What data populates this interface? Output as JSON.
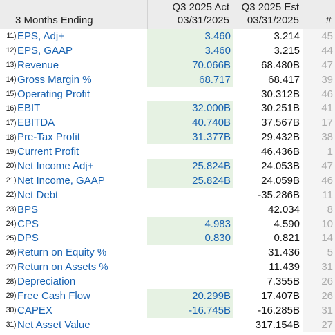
{
  "header": {
    "label": "3 Months Ending",
    "act_title": "Q3 2025 Act",
    "act_date": "03/31/2025",
    "est_title": "Q3 2025 Est",
    "est_date": "03/31/2025",
    "count_title": "#"
  },
  "rows": [
    {
      "num": "11)",
      "label": "EPS, Adj+",
      "act": "3.460",
      "est": "3.214",
      "count": "45"
    },
    {
      "num": "12)",
      "label": "EPS, GAAP",
      "act": "3.460",
      "est": "3.215",
      "count": "44"
    },
    {
      "num": "13)",
      "label": "Revenue",
      "act": "70.066B",
      "est": "68.480B",
      "count": "47"
    },
    {
      "num": "14)",
      "label": "Gross Margin %",
      "act": "68.717",
      "est": "68.417",
      "count": "39"
    },
    {
      "num": "15)",
      "label": "Operating Profit",
      "act": "",
      "est": "30.312B",
      "count": "46"
    },
    {
      "num": "16)",
      "label": "EBIT",
      "act": "32.000B",
      "est": "30.251B",
      "count": "41"
    },
    {
      "num": "17)",
      "label": "EBITDA",
      "act": "40.740B",
      "est": "37.567B",
      "count": "17"
    },
    {
      "num": "18)",
      "label": "Pre-Tax Profit",
      "act": "31.377B",
      "est": "29.432B",
      "count": "38"
    },
    {
      "num": "19)",
      "label": "Current Profit",
      "act": "",
      "est": "46.436B",
      "count": "1"
    },
    {
      "num": "20)",
      "label": "Net Income Adj+",
      "act": "25.824B",
      "est": "24.053B",
      "count": "47"
    },
    {
      "num": "21)",
      "label": "Net Income, GAAP",
      "act": "25.824B",
      "est": "24.059B",
      "count": "46"
    },
    {
      "num": "22)",
      "label": "Net Debt",
      "act": "",
      "est": "-35.286B",
      "count": "11"
    },
    {
      "num": "23)",
      "label": "BPS",
      "act": "",
      "est": "42.034",
      "count": "8"
    },
    {
      "num": "24)",
      "label": "CPS",
      "act": "4.983",
      "est": "4.590",
      "count": "10"
    },
    {
      "num": "25)",
      "label": "DPS",
      "act": "0.830",
      "est": "0.821",
      "count": "14"
    },
    {
      "num": "26)",
      "label": "Return on Equity %",
      "act": "",
      "est": "31.436",
      "count": "5"
    },
    {
      "num": "27)",
      "label": "Return on Assets %",
      "act": "",
      "est": "11.439",
      "count": "31"
    },
    {
      "num": "28)",
      "label": "Depreciation",
      "act": "",
      "est": "7.355B",
      "count": "26"
    },
    {
      "num": "29)",
      "label": "Free Cash Flow",
      "act": "20.299B",
      "est": "17.407B",
      "count": "26"
    },
    {
      "num": "30)",
      "label": "CAPEX",
      "act": "-16.745B",
      "est": "-16.285B",
      "count": "31"
    },
    {
      "num": "31)",
      "label": "Net Asset Value",
      "act": "",
      "est": "317.154B",
      "count": "27"
    }
  ]
}
